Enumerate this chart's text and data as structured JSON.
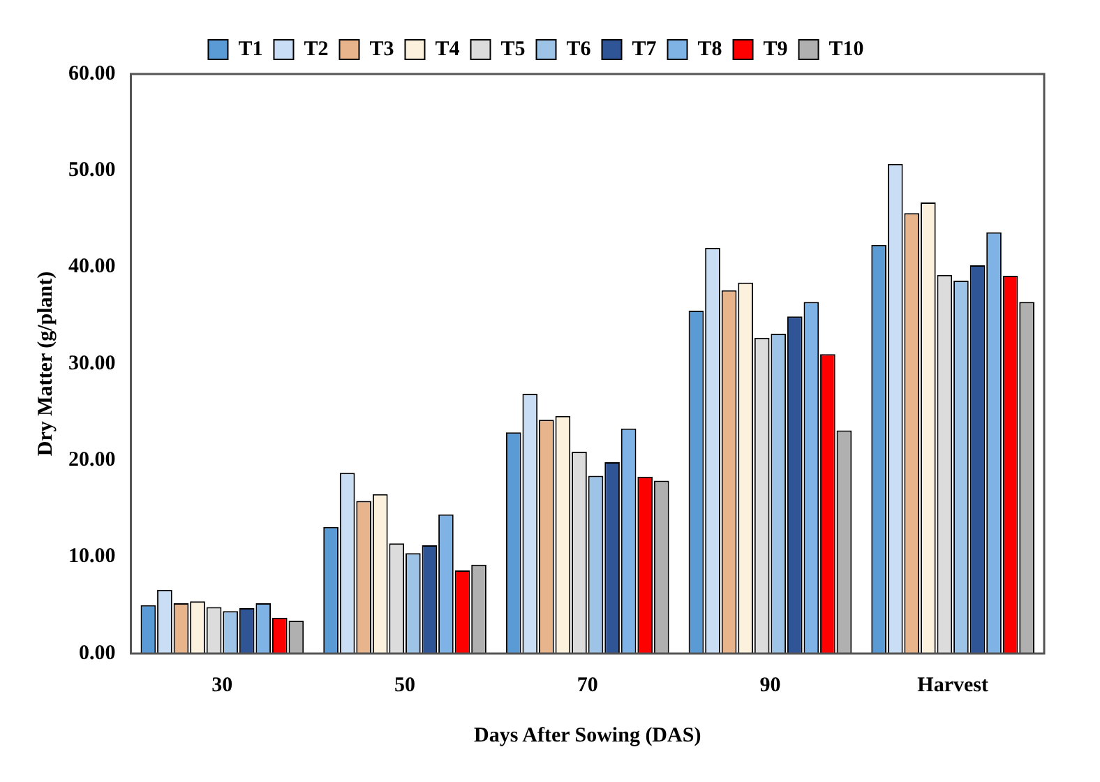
{
  "chart_data": {
    "type": "bar",
    "xlabel": "Days After Sowing (DAS)",
    "ylabel": "Dry Matter (g/plant)",
    "categories": [
      "30",
      "50",
      "70",
      "90",
      "Harvest"
    ],
    "series": [
      {
        "name": "T1",
        "color": "#5b9bd5",
        "values": [
          5.0,
          13.1,
          22.9,
          35.5,
          42.3
        ]
      },
      {
        "name": "T2",
        "color": "#c9def4",
        "values": [
          6.6,
          18.7,
          26.9,
          42.0,
          50.7
        ]
      },
      {
        "name": "T3",
        "color": "#e8b48c",
        "values": [
          5.2,
          15.8,
          24.2,
          37.6,
          45.6
        ]
      },
      {
        "name": "T4",
        "color": "#fbf1dc",
        "values": [
          5.4,
          16.5,
          24.6,
          38.4,
          46.7
        ]
      },
      {
        "name": "T5",
        "color": "#dcdcdc",
        "values": [
          4.8,
          11.4,
          20.9,
          32.7,
          39.2
        ]
      },
      {
        "name": "T6",
        "color": "#9dc3e6",
        "values": [
          4.4,
          10.4,
          18.4,
          33.1,
          38.6
        ]
      },
      {
        "name": "T7",
        "color": "#2f5597",
        "values": [
          4.7,
          11.2,
          19.8,
          34.9,
          40.2
        ]
      },
      {
        "name": "T8",
        "color": "#7fb2e5",
        "values": [
          5.2,
          14.4,
          23.3,
          36.4,
          43.6
        ]
      },
      {
        "name": "T9",
        "color": "#ff0000",
        "values": [
          3.7,
          8.6,
          18.3,
          31.0,
          39.1
        ]
      },
      {
        "name": "T10",
        "color": "#b0b0b0",
        "values": [
          3.4,
          9.2,
          17.9,
          23.1,
          36.4
        ]
      }
    ],
    "ylim": [
      0,
      60
    ],
    "yticks": [
      {
        "value": 0,
        "label": "0.00"
      },
      {
        "value": 10,
        "label": "10.00"
      },
      {
        "value": 20,
        "label": "20.00"
      },
      {
        "value": 30,
        "label": "30.00"
      },
      {
        "value": 40,
        "label": "40.00"
      },
      {
        "value": 50,
        "label": "50.00"
      },
      {
        "value": 60,
        "label": "60.00"
      }
    ],
    "grid": false,
    "legend": "top"
  }
}
